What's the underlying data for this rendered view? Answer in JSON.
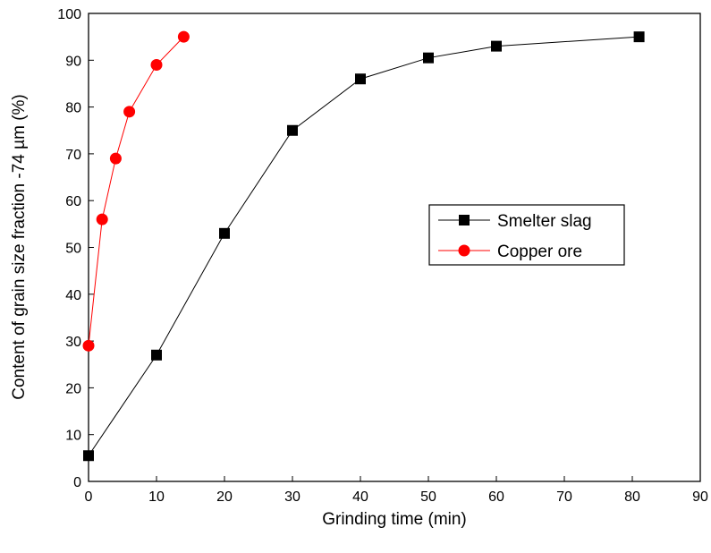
{
  "chart_data": {
    "type": "line",
    "xlabel": "Grinding time (min)",
    "ylabel": "Content of grain size fraction -74 µm (%)",
    "xlim": [
      0,
      90
    ],
    "ylim": [
      0,
      100
    ],
    "x_ticks": [
      0,
      10,
      20,
      30,
      40,
      50,
      60,
      70,
      80,
      90
    ],
    "y_ticks": [
      0,
      10,
      20,
      30,
      40,
      50,
      60,
      70,
      80,
      90,
      100
    ],
    "grid": false,
    "legend_position": "center-right",
    "series": [
      {
        "name": "Smelter slag",
        "color": "#000000",
        "marker": "square",
        "x": [
          0,
          10,
          20,
          30,
          40,
          50,
          60,
          81
        ],
        "y": [
          5.5,
          27,
          53,
          75,
          86,
          90.5,
          93,
          95
        ]
      },
      {
        "name": "Copper ore",
        "color": "#ff0000",
        "marker": "circle",
        "x": [
          0,
          2,
          4,
          6,
          10,
          14
        ],
        "y": [
          29,
          56,
          69,
          79,
          89,
          95
        ]
      }
    ]
  }
}
